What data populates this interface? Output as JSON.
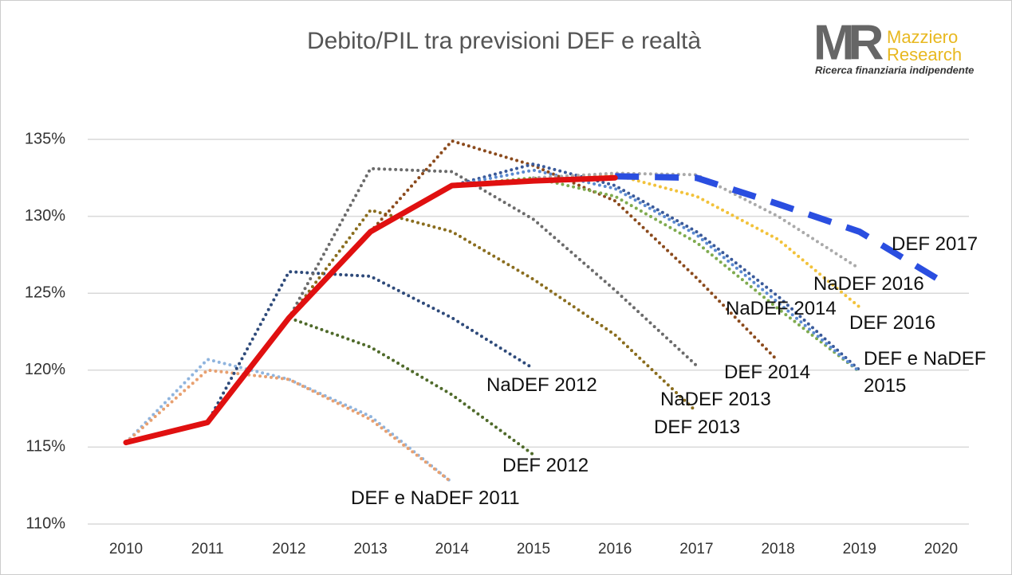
{
  "chart_data": {
    "type": "line",
    "title": "Debito/PIL tra previsioni  DEF e realtà",
    "logo": {
      "mark": "MR",
      "name_1": "Mazziero",
      "name_2": "Research",
      "tagline": "Ricerca finanziaria indipendente"
    },
    "categories": [
      "2010",
      "2011",
      "2012",
      "2013",
      "2014",
      "2015",
      "2016",
      "2017",
      "2018",
      "2019",
      "2020"
    ],
    "ylim": [
      110,
      135
    ],
    "yticks": [
      {
        "value": 110,
        "label": "110%"
      },
      {
        "value": 115,
        "label": "115%"
      },
      {
        "value": 120,
        "label": "120%"
      },
      {
        "value": 125,
        "label": "125%"
      },
      {
        "value": 130,
        "label": "130%"
      },
      {
        "value": 135,
        "label": "135%"
      }
    ],
    "grid": true,
    "series": [
      {
        "name": "DEF e NaDEF 2011",
        "color": "#8fb4de",
        "style": "dotted",
        "values": [
          115.3,
          120.7,
          119.4,
          117.0,
          112.7,
          null,
          null,
          null,
          null,
          null,
          null
        ]
      },
      {
        "color": "#e8a070",
        "style": "dotted",
        "values": [
          115.3,
          120.0,
          119.4,
          116.8,
          112.7,
          null,
          null,
          null,
          null,
          null,
          null
        ]
      },
      {
        "name": "NaDEF 2012",
        "color": "#2e4a7a",
        "style": "dotted",
        "values": [
          null,
          116.6,
          126.4,
          126.1,
          123.4,
          120.1,
          null,
          null,
          null,
          null,
          null
        ]
      },
      {
        "name": "DEF 2012",
        "color": "#4f6a2a",
        "style": "dotted",
        "values": [
          null,
          116.6,
          123.4,
          121.5,
          118.4,
          114.5,
          null,
          null,
          null,
          null,
          null
        ]
      },
      {
        "name": "NaDEF 2013",
        "color": "#8a6d1e",
        "style": "dotted",
        "values": [
          null,
          null,
          123.4,
          130.4,
          129.0,
          125.9,
          122.3,
          117.3,
          null,
          null,
          null
        ]
      },
      {
        "name": "DEF 2013",
        "color": "#6b6b6b",
        "style": "dotted",
        "values": [
          null,
          null,
          123.4,
          133.1,
          132.9,
          129.8,
          125.2,
          120.3,
          null,
          null,
          null
        ]
      },
      {
        "name": "DEF 2014",
        "color": "#8b4a1c",
        "style": "dotted",
        "values": [
          null,
          null,
          null,
          129.0,
          134.9,
          133.3,
          131.0,
          126.0,
          120.6,
          null,
          null
        ]
      },
      {
        "name": "NaDEF 2014",
        "color": "#3a5a9a",
        "style": "dotted",
        "values": [
          null,
          null,
          null,
          null,
          132.0,
          133.4,
          132.0,
          129.0,
          124.8,
          120.0,
          null
        ]
      },
      {
        "name": "DEF e NaDEF 2015",
        "color": "#7fab4f",
        "style": "dotted",
        "values": [
          null,
          null,
          null,
          null,
          132.0,
          132.5,
          131.3,
          128.3,
          124.0,
          119.9,
          null
        ]
      },
      {
        "color": "#5b8ad0",
        "style": "dotted",
        "values": [
          null,
          null,
          null,
          null,
          132.0,
          133.0,
          131.8,
          128.8,
          124.4,
          119.9,
          null
        ]
      },
      {
        "name": "DEF 2016",
        "color": "#f2c23a",
        "style": "dotted",
        "values": [
          null,
          null,
          null,
          null,
          null,
          132.4,
          132.7,
          131.3,
          128.5,
          124.1,
          null
        ]
      },
      {
        "name": "NaDEF 2016",
        "color": "#aaaaaa",
        "style": "dotted",
        "values": [
          null,
          null,
          null,
          null,
          null,
          132.5,
          132.8,
          132.7,
          130.0,
          126.6,
          null
        ]
      },
      {
        "name": "DEF 2017",
        "color": "#2a4ee0",
        "style": "dashed",
        "values": [
          null,
          null,
          null,
          null,
          null,
          null,
          132.6,
          132.5,
          130.8,
          129.0,
          125.8
        ]
      },
      {
        "color": "#e01010",
        "style": "solid",
        "values": [
          115.3,
          116.6,
          123.4,
          129.0,
          132.0,
          132.3,
          132.5,
          null,
          null,
          null,
          null
        ]
      }
    ]
  }
}
